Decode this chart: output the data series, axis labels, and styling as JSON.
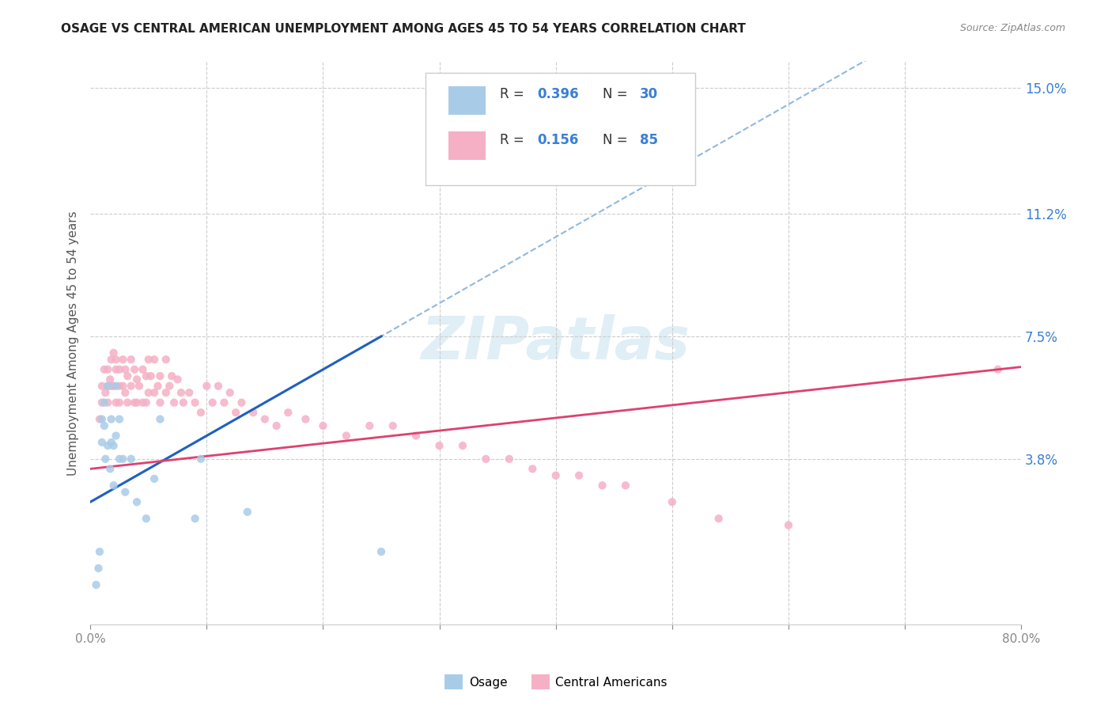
{
  "title": "OSAGE VS CENTRAL AMERICAN UNEMPLOYMENT AMONG AGES 45 TO 54 YEARS CORRELATION CHART",
  "source": "Source: ZipAtlas.com",
  "ylabel": "Unemployment Among Ages 45 to 54 years",
  "xlim": [
    0.0,
    0.8
  ],
  "ylim": [
    -0.012,
    0.158
  ],
  "ytick_positions": [
    0.0,
    0.038,
    0.075,
    0.112,
    0.15
  ],
  "ytick_labels": [
    "",
    "3.8%",
    "7.5%",
    "11.2%",
    "15.0%"
  ],
  "xtick_positions": [
    0.0,
    0.1,
    0.2,
    0.3,
    0.4,
    0.5,
    0.6,
    0.7,
    0.8
  ],
  "xtick_labels": [
    "0.0%",
    "",
    "",
    "",
    "",
    "",
    "",
    "",
    "80.0%"
  ],
  "osage_scatter_color": "#a8cce8",
  "osage_line_color": "#2060c0",
  "central_scatter_color": "#f5b0c5",
  "central_line_color": "#e04070",
  "dashed_color": "#90b8e0",
  "grid_color": "#cccccc",
  "title_color": "#222222",
  "source_color": "#888888",
  "ylabel_color": "#555555",
  "legend_value_color": "#3a7fd5",
  "watermark_color": "#c8e0f0",
  "watermark_text": "ZIPatlas",
  "legend_r1": "0.396",
  "legend_n1": "30",
  "legend_r2": "0.156",
  "legend_n2": "85",
  "osage_x": [
    0.005,
    0.007,
    0.008,
    0.01,
    0.01,
    0.012,
    0.012,
    0.013,
    0.015,
    0.015,
    0.017,
    0.018,
    0.018,
    0.02,
    0.02,
    0.022,
    0.022,
    0.025,
    0.025,
    0.028,
    0.03,
    0.035,
    0.04,
    0.048,
    0.055,
    0.06,
    0.09,
    0.095,
    0.135,
    0.25
  ],
  "osage_y": [
    0.0,
    0.005,
    0.01,
    0.043,
    0.05,
    0.048,
    0.055,
    0.038,
    0.042,
    0.06,
    0.035,
    0.043,
    0.05,
    0.042,
    0.03,
    0.06,
    0.045,
    0.038,
    0.05,
    0.038,
    0.028,
    0.038,
    0.025,
    0.02,
    0.032,
    0.05,
    0.02,
    0.038,
    0.022,
    0.01
  ],
  "central_x": [
    0.008,
    0.01,
    0.01,
    0.012,
    0.013,
    0.015,
    0.015,
    0.015,
    0.017,
    0.018,
    0.018,
    0.02,
    0.02,
    0.022,
    0.022,
    0.022,
    0.025,
    0.025,
    0.025,
    0.028,
    0.028,
    0.03,
    0.03,
    0.032,
    0.032,
    0.035,
    0.035,
    0.038,
    0.038,
    0.04,
    0.04,
    0.042,
    0.045,
    0.045,
    0.048,
    0.048,
    0.05,
    0.05,
    0.052,
    0.055,
    0.055,
    0.058,
    0.06,
    0.06,
    0.065,
    0.065,
    0.068,
    0.07,
    0.072,
    0.075,
    0.078,
    0.08,
    0.085,
    0.09,
    0.095,
    0.1,
    0.105,
    0.11,
    0.115,
    0.12,
    0.125,
    0.13,
    0.14,
    0.15,
    0.16,
    0.17,
    0.185,
    0.2,
    0.22,
    0.24,
    0.26,
    0.28,
    0.3,
    0.32,
    0.34,
    0.36,
    0.38,
    0.4,
    0.42,
    0.44,
    0.46,
    0.5,
    0.54,
    0.6,
    0.78
  ],
  "central_y": [
    0.05,
    0.06,
    0.055,
    0.065,
    0.058,
    0.065,
    0.06,
    0.055,
    0.062,
    0.068,
    0.06,
    0.07,
    0.06,
    0.068,
    0.065,
    0.055,
    0.065,
    0.06,
    0.055,
    0.068,
    0.06,
    0.065,
    0.058,
    0.063,
    0.055,
    0.068,
    0.06,
    0.065,
    0.055,
    0.062,
    0.055,
    0.06,
    0.065,
    0.055,
    0.063,
    0.055,
    0.068,
    0.058,
    0.063,
    0.068,
    0.058,
    0.06,
    0.063,
    0.055,
    0.068,
    0.058,
    0.06,
    0.063,
    0.055,
    0.062,
    0.058,
    0.055,
    0.058,
    0.055,
    0.052,
    0.06,
    0.055,
    0.06,
    0.055,
    0.058,
    0.052,
    0.055,
    0.052,
    0.05,
    0.048,
    0.052,
    0.05,
    0.048,
    0.045,
    0.048,
    0.048,
    0.045,
    0.042,
    0.042,
    0.038,
    0.038,
    0.035,
    0.033,
    0.033,
    0.03,
    0.03,
    0.025,
    0.02,
    0.018,
    0.065
  ],
  "osage_line_x0": 0.0,
  "osage_line_y0": 0.025,
  "osage_line_x1": 0.25,
  "osage_line_y1": 0.075,
  "central_line_x0": 0.0,
  "central_line_y0": 0.035,
  "central_line_x1": 0.78,
  "central_line_y1": 0.065
}
